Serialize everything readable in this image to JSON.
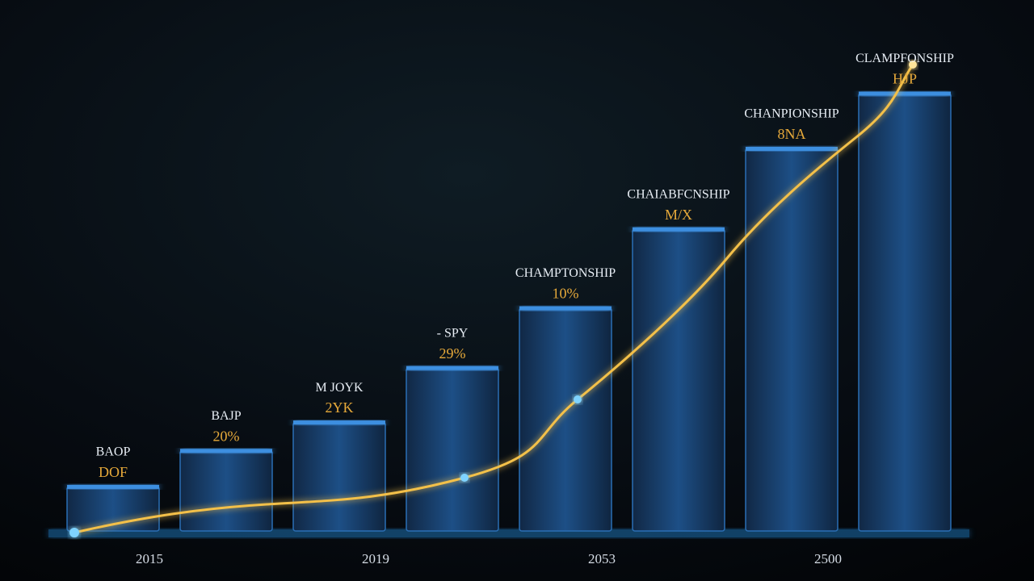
{
  "chart_data": {
    "type": "bar",
    "categories": [
      "2015",
      null,
      "2019",
      null,
      "2053",
      null,
      "2500",
      null
    ],
    "values": [
      58,
      105,
      142,
      213,
      291,
      394,
      499,
      571
    ],
    "ylim": [
      0,
      600
    ],
    "color": "#1d4f86",
    "annotations": [
      {
        "title": "BAOP",
        "label": "DOF"
      },
      {
        "title": "BAJP",
        "label": "20%"
      },
      {
        "title": "M JOYK",
        "label": "2YK"
      },
      {
        "title": "- SPY",
        "label": "29%"
      },
      {
        "title": "CHAMPTONSHIP",
        "label": "10%"
      },
      {
        "title": "CHAIABFCNSHIP",
        "label": "M/X"
      },
      {
        "title": "CHANPIONSHIP",
        "label": "8NA"
      },
      {
        "title": "CLAMPFONSHIP",
        "label": "HJP"
      }
    ]
  }
}
